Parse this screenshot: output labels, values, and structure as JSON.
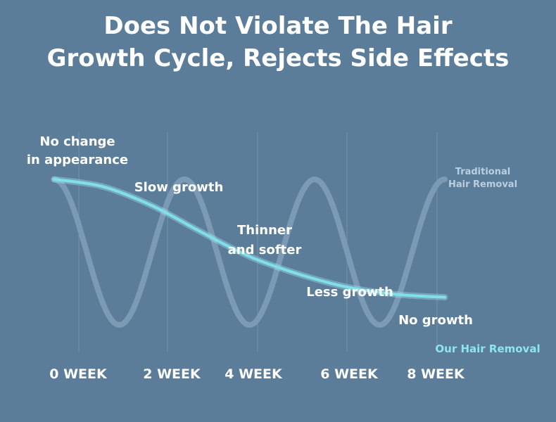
{
  "title_lines": [
    "Does Not Violate The Hair",
    "Growth Cycle, Rejects Side Effects"
  ],
  "colors": {
    "background": "#5b7d9a",
    "traditional": "#7c9ab3",
    "ours": "#7fe0ec",
    "grid": "#8aa4ba",
    "text": "#ffffff"
  },
  "chart_data": {
    "type": "line",
    "x": [
      0,
      2,
      4,
      6,
      8
    ],
    "tick_labels": [
      "0 WEEK",
      "2 WEEK",
      "4 WEEK",
      "6 WEEK",
      "8 WEEK"
    ],
    "grid": "vertical",
    "series": [
      {
        "name": "Our Hair Removal",
        "points": [
          [
            0,
            100
          ],
          [
            1,
            95
          ],
          [
            2,
            82
          ],
          [
            3,
            64
          ],
          [
            4,
            47
          ],
          [
            5,
            35
          ],
          [
            6,
            26
          ],
          [
            7,
            21
          ],
          [
            8,
            19
          ]
        ]
      },
      {
        "name": "Traditional Hair Removal",
        "shape": "oscillating",
        "cycles": 3,
        "high": 100,
        "low": 0
      }
    ],
    "annotations": [
      {
        "lines": [
          "No change",
          "in appearance"
        ],
        "x": 0
      },
      {
        "lines": [
          "Slow growth"
        ],
        "x": 2
      },
      {
        "lines": [
          "Thinner",
          "and softer"
        ],
        "x": 4
      },
      {
        "lines": [
          "Less growth"
        ],
        "x": 6
      },
      {
        "lines": [
          "No growth"
        ],
        "x": 8
      }
    ],
    "series_labels": {
      "traditional": [
        "Traditional",
        "Hair Removal"
      ],
      "ours": "Our Hair Removal"
    }
  }
}
